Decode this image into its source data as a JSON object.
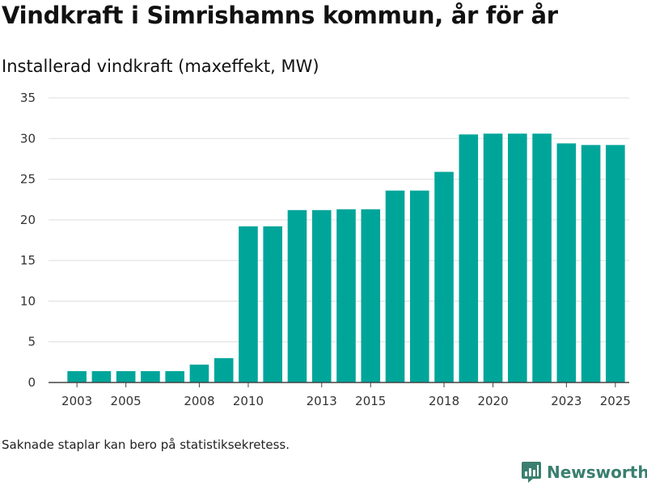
{
  "title": "Vindkraft i Simrishamns kommun, år för år",
  "subtitle": "Installerad vindkraft (maxeffekt, MW)",
  "footnote": "Saknade staplar kan bero på statistiksekretess.",
  "brand": {
    "name": "Newsworthy",
    "icon": "newsworthy-logo-icon",
    "color": "#3a7f6f"
  },
  "chart_data": {
    "type": "bar",
    "title": "Vindkraft i Simrishamns kommun, år för år",
    "ylabel": "Installerad vindkraft (maxeffekt, MW)",
    "xlabel": "",
    "bar_color": "#00a59a",
    "grid": true,
    "ylim": [
      0,
      35
    ],
    "yticks": [
      0,
      5,
      10,
      15,
      20,
      25,
      30,
      35
    ],
    "xtick_labels": [
      "2003",
      "2005",
      "2008",
      "2010",
      "2013",
      "2015",
      "2018",
      "2020",
      "2023",
      "2025"
    ],
    "categories": [
      "2003",
      "2004",
      "2005",
      "2006",
      "2007",
      "2008",
      "2009",
      "2010",
      "2011",
      "2012",
      "2013",
      "2014",
      "2015",
      "2016",
      "2017",
      "2018",
      "2019",
      "2020",
      "2021",
      "2022",
      "2023",
      "2024",
      "2025"
    ],
    "values": [
      1.4,
      1.4,
      1.4,
      1.4,
      1.4,
      2.2,
      3.0,
      19.2,
      19.2,
      21.2,
      21.2,
      21.3,
      21.3,
      23.6,
      23.6,
      25.9,
      30.5,
      30.6,
      30.6,
      30.6,
      29.4,
      29.2,
      29.2
    ]
  }
}
